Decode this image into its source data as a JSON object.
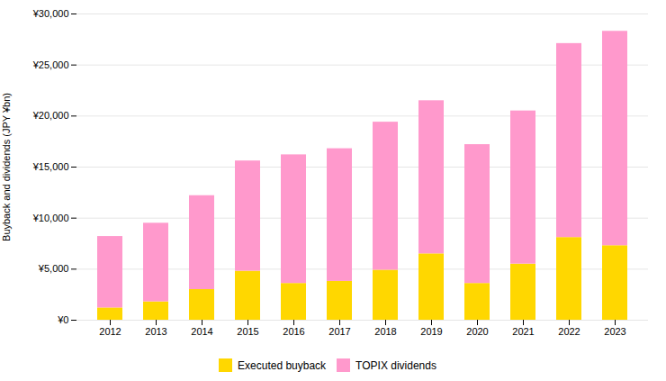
{
  "chart_data": {
    "type": "bar",
    "stacked": true,
    "categories": [
      "2012",
      "2013",
      "2014",
      "2015",
      "2016",
      "2017",
      "2018",
      "2019",
      "2020",
      "2021",
      "2022",
      "2023"
    ],
    "series": [
      {
        "name": "Executed buyback",
        "color": "#FFD700",
        "values": [
          1200,
          1800,
          3000,
          4800,
          3600,
          3800,
          4900,
          6500,
          3600,
          5500,
          8100,
          7300
        ]
      },
      {
        "name": "TOPIX dividends",
        "color": "#FF99CC",
        "values": [
          7000,
          7700,
          9200,
          10800,
          12600,
          13000,
          14500,
          15000,
          13600,
          15000,
          19000,
          21000
        ]
      }
    ],
    "ylabel": "Buyback and dividends (JPY ¥bn)",
    "ylim": [
      0,
      30000
    ],
    "yticks": [
      {
        "value": 0,
        "label": "¥0"
      },
      {
        "value": 5000,
        "label": "¥5,000"
      },
      {
        "value": 10000,
        "label": "¥10,000"
      },
      {
        "value": 15000,
        "label": "¥15,000"
      },
      {
        "value": 20000,
        "label": "¥20,000"
      },
      {
        "value": 25000,
        "label": "¥25,000"
      },
      {
        "value": 30000,
        "label": "¥30,000"
      }
    ],
    "grid": true,
    "legend": "bottom"
  }
}
